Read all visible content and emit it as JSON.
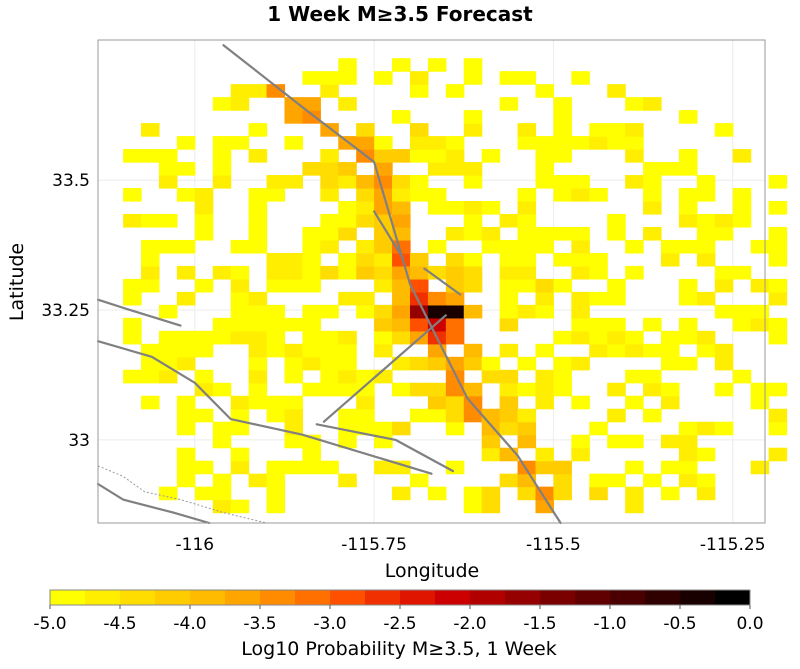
{
  "chart_data": {
    "type": "heatmap",
    "title": "1 Week M≥3.5 Forecast",
    "xlabel": "Longitude",
    "ylabel": "Latitude",
    "xlim": [
      -116.135,
      -115.205
    ],
    "ylim": [
      32.84,
      33.77
    ],
    "xticks": [
      -116,
      -115.75,
      -115.5,
      -115.25
    ],
    "xtick_labels": [
      "-116",
      "-115.75",
      "-115.5",
      "-115.25"
    ],
    "yticks": [
      33,
      33.25,
      33.5
    ],
    "ytick_labels": [
      "33",
      "33.25",
      "33.5"
    ],
    "grid": true,
    "cell_size_deg": 0.025,
    "center": {
      "lon": -115.66,
      "lat": 33.245
    },
    "peak_log10_probability": -0.4,
    "colorbar": {
      "label": "Log10 Probability M≥3.5, 1 Week",
      "min": -5.0,
      "max": 0.0,
      "tick_values": [
        -5.0,
        -4.5,
        -4.0,
        -3.5,
        -3.0,
        -2.5,
        -2.0,
        -1.5,
        -1.0,
        -0.5,
        0.0
      ],
      "tick_labels": [
        "-5.0",
        "-4.5",
        "-4.0",
        "-3.5",
        "-3.0",
        "-2.5",
        "-2.0",
        "-1.5",
        "-1.0",
        "-0.5",
        "0.0"
      ],
      "colors": [
        "#ffff00",
        "#ffee00",
        "#ffdd00",
        "#ffcc00",
        "#ffbb00",
        "#ffa500",
        "#ff8c00",
        "#ff7000",
        "#ff5000",
        "#f03000",
        "#e01500",
        "#cc0000",
        "#b00000",
        "#950000",
        "#7a0000",
        "#600000",
        "#4a0000",
        "#300000",
        "#180000",
        "#000000"
      ]
    },
    "faults": [
      {
        "points": [
          [
            -115.96,
            33.76
          ],
          [
            -115.84,
            33.63
          ],
          [
            -115.75,
            33.535
          ],
          [
            -115.7,
            33.3
          ],
          [
            -115.62,
            33.08
          ],
          [
            -115.55,
            32.97
          ],
          [
            -115.49,
            32.84
          ]
        ]
      },
      {
        "points": [
          [
            -115.75,
            33.44
          ],
          [
            -115.71,
            33.35
          ]
        ]
      },
      {
        "points": [
          [
            -115.68,
            33.33
          ],
          [
            -115.63,
            33.28
          ]
        ]
      },
      {
        "points": [
          [
            -115.82,
            33.035
          ],
          [
            -115.65,
            33.24
          ]
        ]
      },
      {
        "points": [
          [
            -115.83,
            33.03
          ],
          [
            -115.72,
            33.0
          ],
          [
            -115.64,
            32.94
          ]
        ]
      },
      {
        "points": [
          [
            -116.135,
            33.19
          ],
          [
            -116.06,
            33.16
          ],
          [
            -116.0,
            33.11
          ],
          [
            -115.95,
            33.04
          ],
          [
            -115.85,
            33.01
          ],
          [
            -115.67,
            32.935
          ]
        ]
      },
      {
        "points": [
          [
            -116.135,
            33.27
          ],
          [
            -116.09,
            33.25
          ],
          [
            -116.02,
            33.22
          ]
        ]
      },
      {
        "points": [
          [
            -116.135,
            32.915
          ],
          [
            -116.1,
            32.885
          ],
          [
            -116.03,
            32.86
          ],
          [
            -115.98,
            32.84
          ]
        ]
      }
    ],
    "border": {
      "points": [
        [
          -116.135,
          32.95
        ],
        [
          -116.1,
          32.93
        ],
        [
          -116.07,
          32.9
        ],
        [
          -116.02,
          32.885
        ],
        [
          -115.96,
          32.86
        ],
        [
          -115.9,
          32.84
        ]
      ]
    }
  }
}
